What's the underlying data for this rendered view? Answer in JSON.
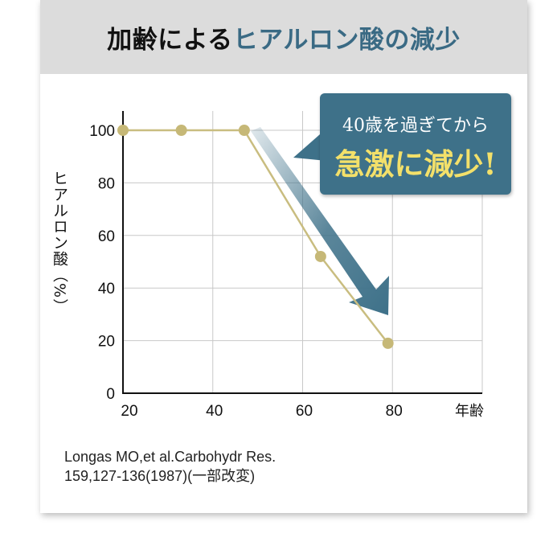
{
  "title": {
    "part1": "加齢による",
    "part2": "ヒアルロン酸の減少"
  },
  "callout": {
    "line1": "40歳を過ぎてから",
    "line2": "急激に減少!"
  },
  "source": {
    "line1": "Longas MO,et al.Carbohydr Res.",
    "line2": "159,127-136(1987)(一部改変)"
  },
  "colors": {
    "line": "#c9bd80",
    "marker": "#c6b877",
    "arrow": "#3e7189",
    "callout_bg": "#3e7189",
    "callout_emphasis": "#f3e06a",
    "title_highlight": "#3a6a84"
  },
  "chart_data": {
    "type": "line",
    "ylabel": "ヒアルロン酸（%）",
    "xlabel": "年齢",
    "x_ticks": [
      20,
      40,
      60,
      80
    ],
    "y_ticks": [
      0,
      20,
      40,
      60,
      80,
      100
    ],
    "xlim": [
      20,
      100
    ],
    "ylim": [
      0,
      100
    ],
    "x": [
      20,
      33,
      47,
      64,
      79
    ],
    "y": [
      100,
      100,
      100,
      52,
      19
    ],
    "grid": true
  }
}
